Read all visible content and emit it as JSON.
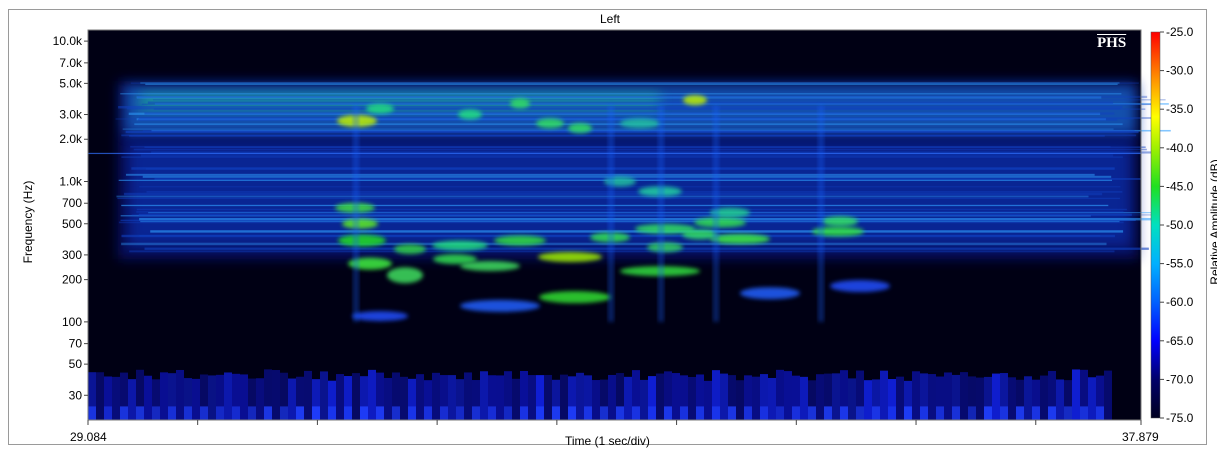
{
  "title": "Left",
  "watermark": "PHS",
  "y_axis": {
    "label": "Frequency (Hz)",
    "scale": "log",
    "ticks": [
      {
        "value": 10000,
        "label": "10.0k"
      },
      {
        "value": 7000,
        "label": "7.0k"
      },
      {
        "value": 5000,
        "label": "5.0k"
      },
      {
        "value": 3000,
        "label": "3.0k"
      },
      {
        "value": 2000,
        "label": "2.0k"
      },
      {
        "value": 1000,
        "label": "1.0k"
      },
      {
        "value": 700,
        "label": "700"
      },
      {
        "value": 500,
        "label": "500"
      },
      {
        "value": 300,
        "label": "300"
      },
      {
        "value": 200,
        "label": "200"
      },
      {
        "value": 100,
        "label": "100"
      },
      {
        "value": 70,
        "label": "70"
      },
      {
        "value": 50,
        "label": "50"
      },
      {
        "value": 30,
        "label": "30"
      }
    ],
    "range": [
      20,
      12000
    ]
  },
  "x_axis": {
    "label": "Time (1 sec/div)",
    "start_label": "29.084",
    "end_label": "37.879",
    "range": [
      29.084,
      37.879
    ]
  },
  "colorbar": {
    "label": "Relative Amplitude (dB)",
    "ticks": [
      "-25.0",
      "-30.0",
      "-35.0",
      "-40.0",
      "-45.0",
      "-50.0",
      "-55.0",
      "-60.0",
      "-65.0",
      "-70.0",
      "-75.0"
    ],
    "range": [
      -75,
      -25
    ],
    "colors": [
      "#000020",
      "#00006a",
      "#0000ff",
      "#00a8ff",
      "#00e0c0",
      "#20e020",
      "#c0f000",
      "#ffff00",
      "#ffa000",
      "#ff2000",
      "#ff0000"
    ]
  },
  "chart_data": {
    "type": "heatmap",
    "title": "Left",
    "xlabel": "Time (1 sec/div)",
    "ylabel": "Frequency (Hz)",
    "xlim": [
      29.084,
      37.879
    ],
    "ylim": [
      20,
      12000
    ],
    "y_scale": "log",
    "color_scale_label": "Relative Amplitude (dB)",
    "color_range": [
      -75,
      -25
    ]
  }
}
